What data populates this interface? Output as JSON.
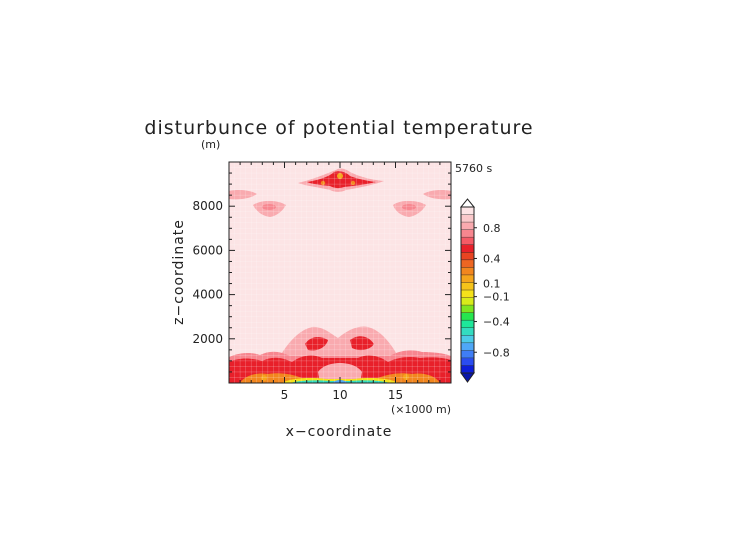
{
  "chart_data": {
    "type": "heatmap",
    "title": "disturbunce of potential temperature",
    "ylabel": "z−coordinate",
    "xlabel": "x−coordinate",
    "y_unit": "(m)",
    "x_unit": "(×1000 m)",
    "time_label": "5760 s",
    "xlim": [
      0,
      20
    ],
    "ylim": [
      0,
      10000
    ],
    "x_ticks": [
      {
        "value": 5,
        "label": "5"
      },
      {
        "value": 10,
        "label": "10"
      },
      {
        "value": 15,
        "label": "15"
      }
    ],
    "y_ticks": [
      {
        "value": 2000,
        "label": "2000"
      },
      {
        "value": 4000,
        "label": "4000"
      },
      {
        "value": 6000,
        "label": "6000"
      },
      {
        "value": 8000,
        "label": "8000"
      }
    ],
    "colorbar": {
      "colors": [
        "#0d1ed9",
        "#2a4cf0",
        "#3f7df5",
        "#4fa7f7",
        "#4ccbe8",
        "#33dcc0",
        "#1ee79a",
        "#26e64f",
        "#7ee620",
        "#d8ec1a",
        "#f5e21a",
        "#f6c41a",
        "#f5a51c",
        "#f2861e",
        "#ee6622",
        "#e84422",
        "#e8202a",
        "#f55a66",
        "#f7868f",
        "#f9aaaf",
        "#fac9cb",
        "#fce4e5"
      ],
      "labels": [
        {
          "value": -0.8,
          "label": "−0.8"
        },
        {
          "value": -0.4,
          "label": "−0.4"
        },
        {
          "value": -0.1,
          "label": "−0.1"
        },
        {
          "value": 0.1,
          "label": "0.1"
        },
        {
          "value": 0.4,
          "label": "0.4"
        },
        {
          "value": 0.8,
          "label": "0.8"
        }
      ],
      "label_positions": [
        0.125,
        0.31,
        0.46,
        0.54,
        0.69,
        0.875
      ]
    },
    "background_level": "#fce4e5",
    "features": [
      {
        "name": "surface-warm-layer",
        "color": "#e8202a",
        "x": [
          0,
          20
        ],
        "z": [
          0,
          1200
        ]
      },
      {
        "name": "surface-cold-pool",
        "color": "#33dcc0",
        "x": [
          5.5,
          14.5
        ],
        "z": [
          0,
          200
        ]
      },
      {
        "name": "central-plume",
        "color": "#f7868f",
        "x": [
          6.5,
          13.5
        ],
        "z": [
          1200,
          2700
        ]
      },
      {
        "name": "upper-warm-core",
        "color": "#e8202a",
        "x": [
          8,
          12
        ],
        "z": [
          8900,
          9500
        ]
      },
      {
        "name": "upper-left-patch",
        "color": "#f7868f",
        "x": [
          2.5,
          5.5
        ],
        "z": [
          7600,
          8300
        ]
      },
      {
        "name": "upper-right-patch",
        "color": "#f7868f",
        "x": [
          14.5,
          17.5
        ],
        "z": [
          7600,
          8300
        ]
      },
      {
        "name": "edge-left-patch",
        "color": "#f7868f",
        "x": [
          0,
          2
        ],
        "z": [
          8200,
          8700
        ]
      },
      {
        "name": "edge-right-patch",
        "color": "#f7868f",
        "x": [
          18,
          20
        ],
        "z": [
          8200,
          8700
        ]
      }
    ]
  }
}
